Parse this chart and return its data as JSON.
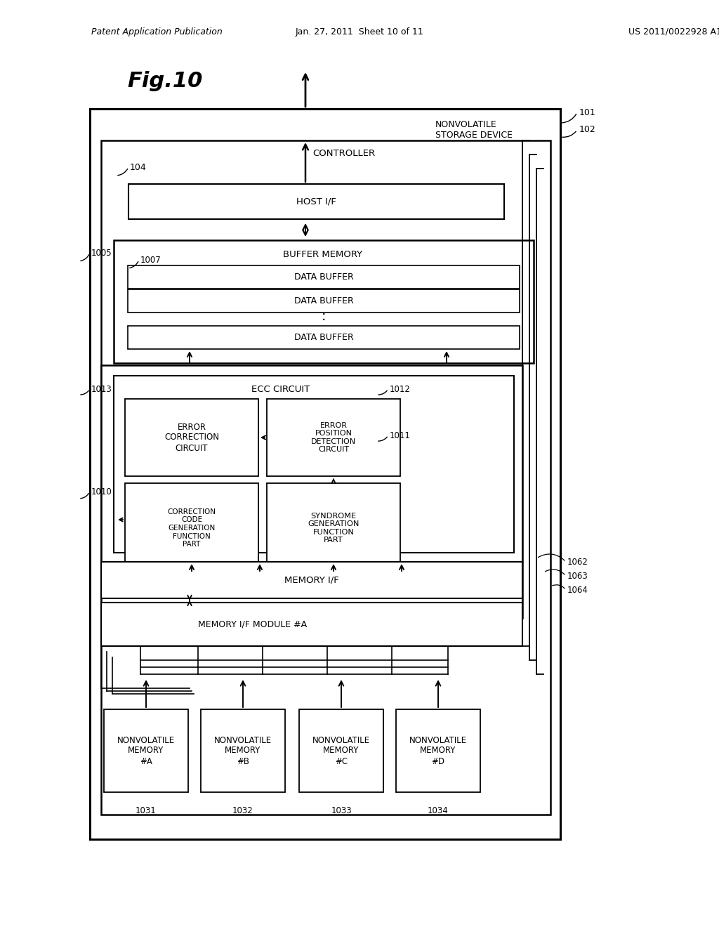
{
  "bg_color": "#ffffff",
  "header_left": "Patent Application Publication",
  "header_center": "Jan. 27, 2011  Sheet 10 of 11",
  "header_right": "US 2011/0022928 A1",
  "fig_title": "Fig.10",
  "labels": {
    "nv_storage": "NONVOLATILE\nSTORAGE DEVICE",
    "controller": "CONTROLLER",
    "host_if": "HOST I/F",
    "buffer_memory": "BUFFER MEMORY",
    "data_buffer": "DATA BUFFER",
    "ecc_circuit": "ECC CIRCUIT",
    "err_correction": "ERROR\nCORRECTION\nCIRCUIT",
    "err_position": "ERROR\nPOSITION\nDETECTION\nCIRCUIT",
    "correction_code": "CORRECTION\nCODE\nGENERATION\nFUNCTION\nPART",
    "syndrome": "SYNDROME\nGENERATION\nFUNCTION\nPART",
    "memory_if": "MEMORY I/F",
    "memory_if_module": "MEMORY I/F MODULE #A",
    "nv_mem_a": "NONVOLATILE\nMEMORY\n#A",
    "nv_mem_b": "NONVOLATILE\nMEMORY\n#B",
    "nv_mem_c": "NONVOLATILE\nMEMORY\n#C",
    "nv_mem_d": "NONVOLATILE\nMEMORY\n#D"
  }
}
